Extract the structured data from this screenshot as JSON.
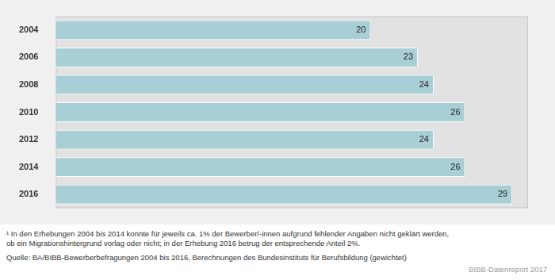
{
  "chart_data": {
    "type": "bar",
    "orientation": "horizontal",
    "categories": [
      "2004",
      "2006",
      "2008",
      "2010",
      "2012",
      "2014",
      "2016"
    ],
    "values": [
      20,
      23,
      24,
      26,
      24,
      26,
      29
    ],
    "color": "#a8cfd6",
    "xlim": [
      0,
      30
    ],
    "grid": false,
    "data_labels": true,
    "tick_labels": "y",
    "footnote": [
      "¹ In den Erhebungen 2004 bis 2014 konnte für jeweils ca. 1% der Bewerber/-innen aufgrund fehlender Angaben nicht geklärt werden,",
      "ob ein Migrationshintergrund vorlag oder nicht; in der Erhebung 2016 betrug der entsprechende Anteil 2%."
    ],
    "source": "Quelle: BA/BIBB-Bewerberbefragungen 2004 bis 2016, Berechnungen des Bundesinstituts für Berufsbildung (gewichtet)",
    "credit": "BIBB-Datenreport 2017"
  }
}
